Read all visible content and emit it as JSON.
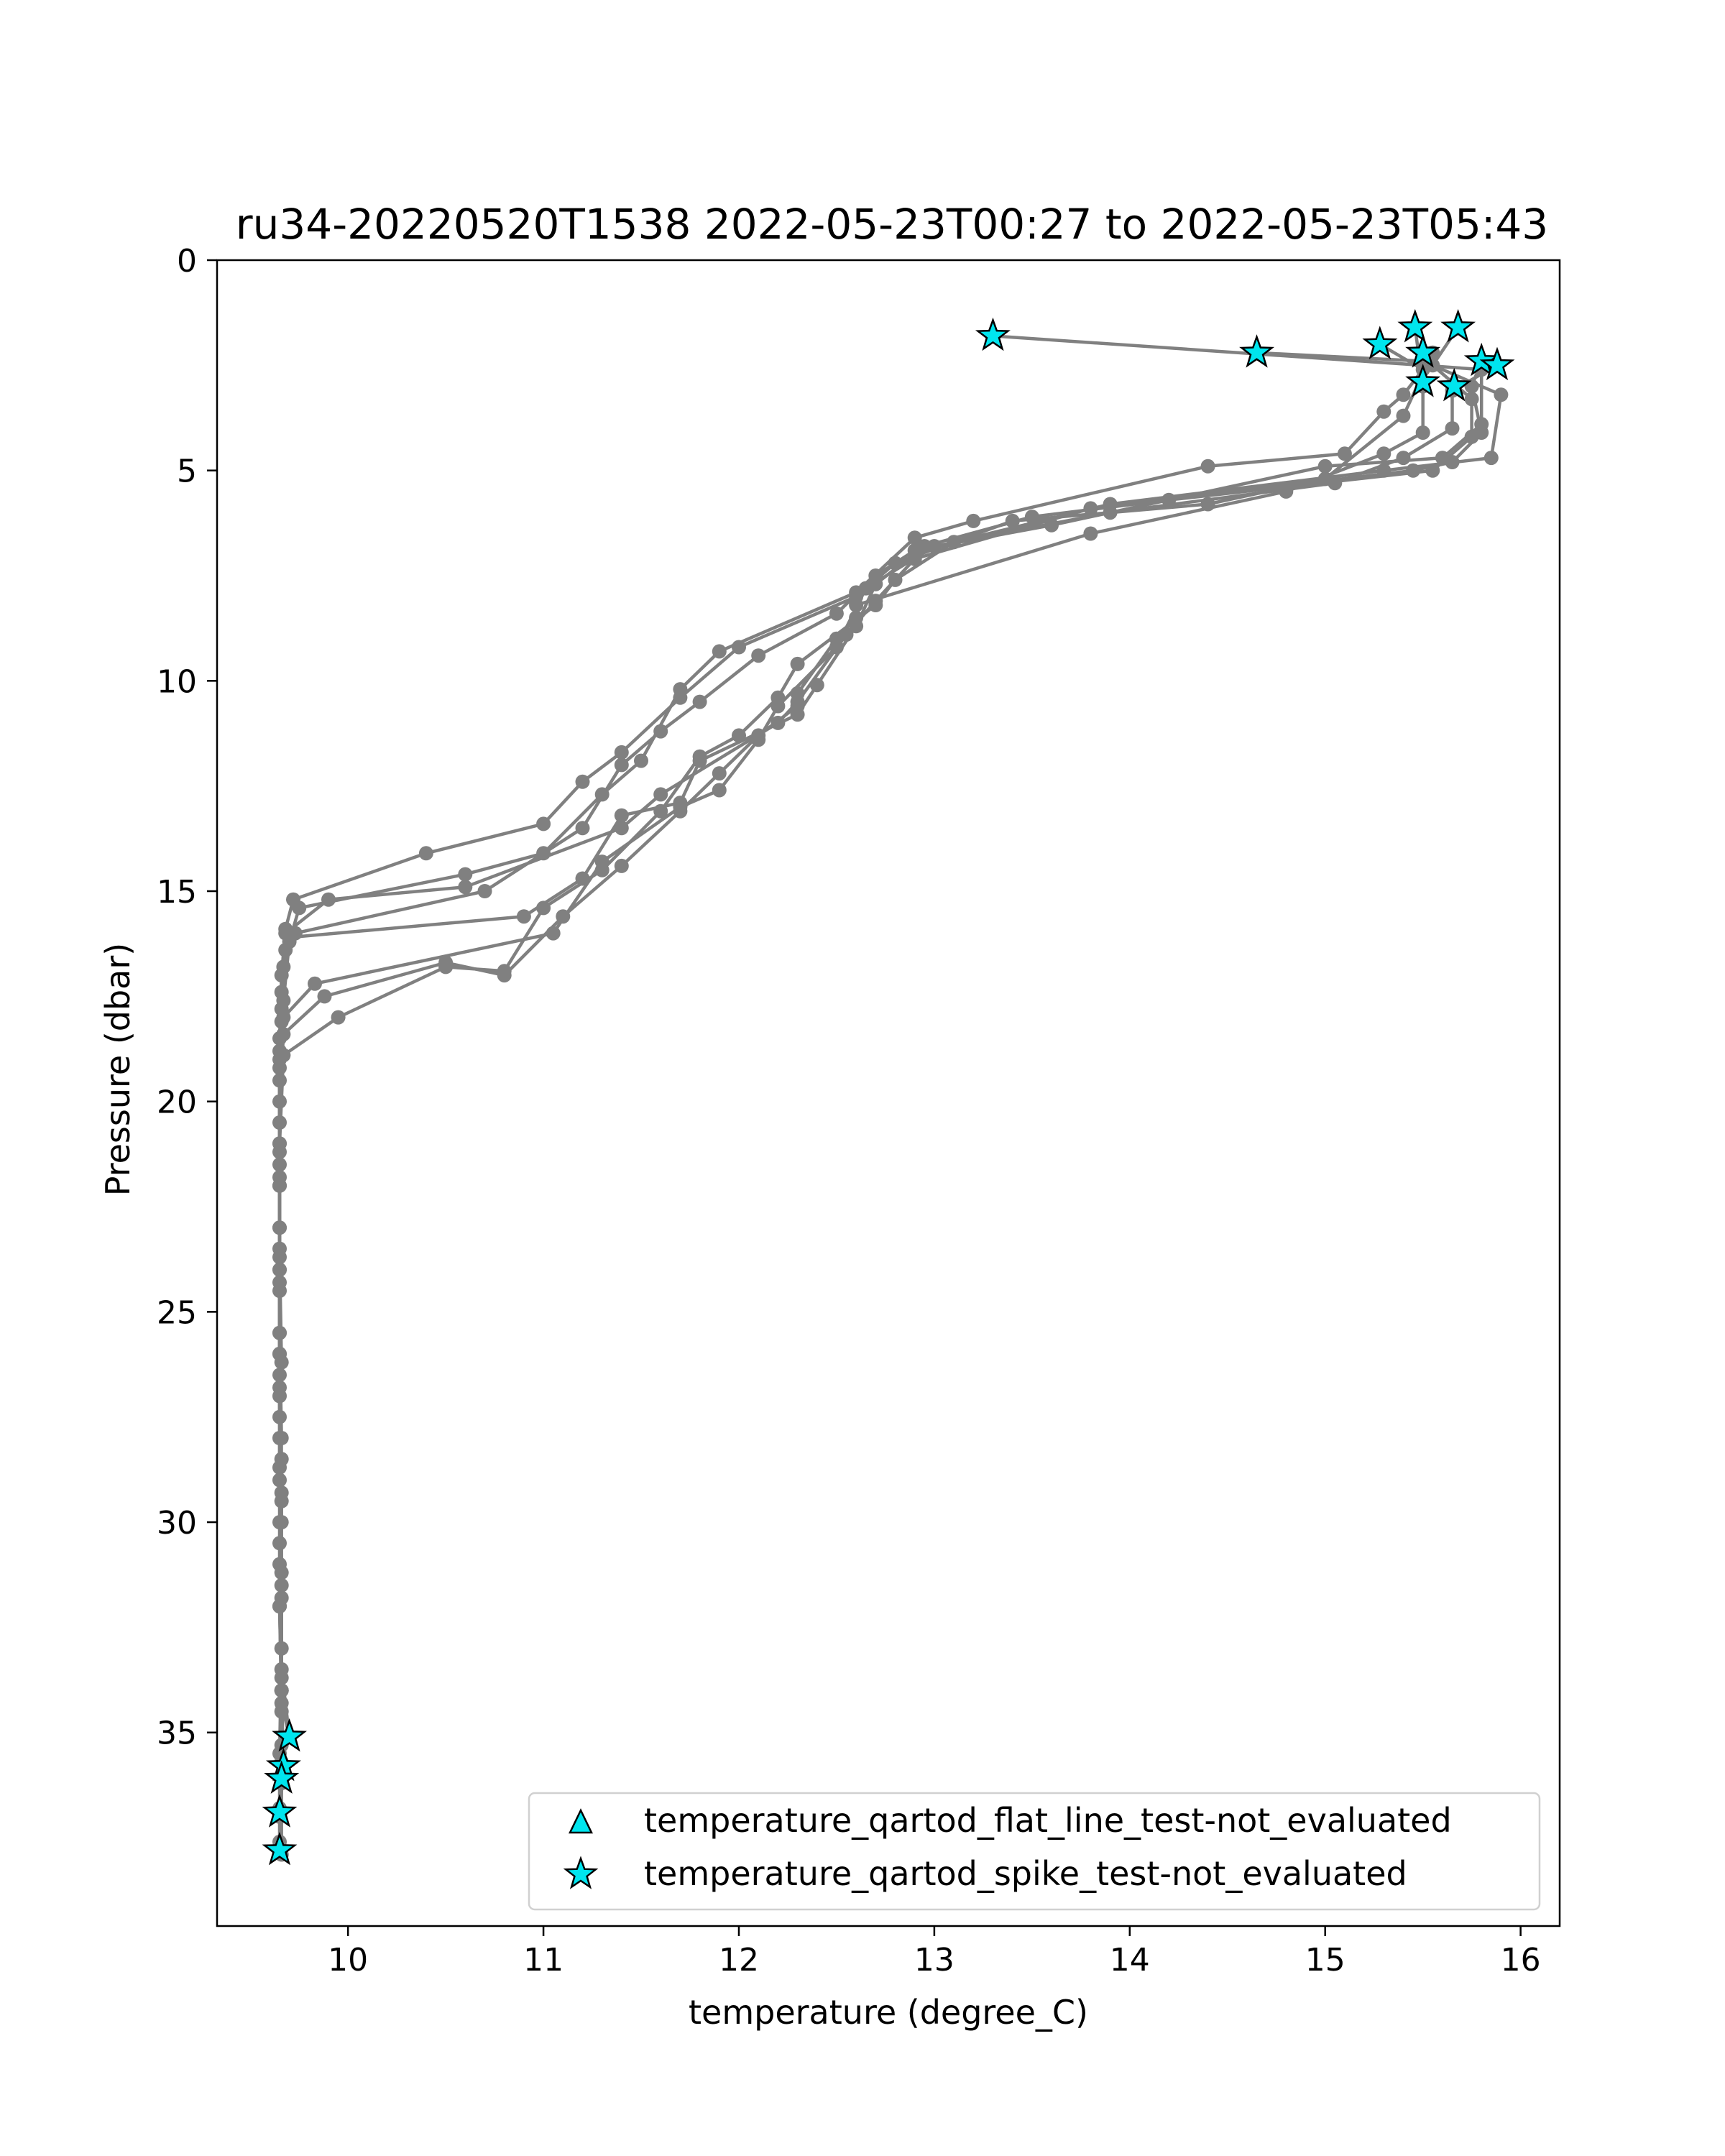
{
  "chart_data": {
    "type": "line",
    "title": "ru34-20220520T1538 2022-05-23T00:27 to 2022-05-23T05:43",
    "xlabel": "temperature (degree_C)",
    "ylabel": "Pressure (dbar)",
    "xlim": [
      9.33,
      16.2
    ],
    "ylim": [
      39.6,
      0
    ],
    "y_inverted": true,
    "x_ticks": [
      "10",
      "11",
      "12",
      "13",
      "14",
      "15",
      "16"
    ],
    "y_ticks": [
      "0",
      "5",
      "10",
      "15",
      "20",
      "25",
      "30",
      "35"
    ],
    "grid": false,
    "legend": {
      "position": "lower-right",
      "entries": [
        {
          "label": "temperature_qartod_flat_line_test-not_evaluated",
          "marker": "triangle",
          "color": "#00e5ee"
        },
        {
          "label": "temperature_qartod_spike_test-not_evaluated",
          "marker": "star",
          "color": "#00e5ee"
        }
      ]
    },
    "profile_color": "#808080",
    "flag_color": "#00e5ee",
    "series": [
      {
        "values": [
          [
            15.46,
            1.6
          ],
          [
            15.5,
            3.0
          ],
          [
            15.5,
            4.1
          ],
          [
            15.3,
            4.6
          ],
          [
            14.8,
            5.5
          ],
          [
            13.8,
            6.5
          ],
          [
            12.6,
            8.2
          ],
          [
            12.6,
            8.5
          ],
          [
            12.5,
            9.0
          ],
          [
            12.3,
            10.3
          ],
          [
            12.3,
            10.6
          ],
          [
            12.1,
            11.3
          ],
          [
            11.9,
            12.2
          ],
          [
            11.7,
            13.1
          ],
          [
            11.4,
            14.4
          ],
          [
            11.1,
            15.6
          ],
          [
            10.8,
            17.0
          ],
          [
            10.5,
            16.7
          ],
          [
            9.88,
            17.5
          ],
          [
            9.67,
            18.4
          ],
          [
            9.65,
            20.0
          ],
          [
            9.65,
            22.0
          ],
          [
            9.65,
            24.0
          ],
          [
            9.65,
            26.0
          ],
          [
            9.65,
            28.0
          ],
          [
            9.65,
            30.0
          ],
          [
            9.65,
            32.0
          ],
          [
            9.66,
            34.0
          ],
          [
            9.66,
            35.3
          ],
          [
            9.65,
            36.8
          ]
        ]
      },
      {
        "values": [
          [
            15.55,
            2.2
          ],
          [
            15.4,
            3.7
          ],
          [
            15.0,
            5.2
          ],
          [
            14.4,
            5.8
          ],
          [
            13.4,
            6.2
          ],
          [
            12.8,
            7.2
          ],
          [
            12.6,
            8.0
          ],
          [
            12.0,
            9.2
          ],
          [
            11.7,
            10.4
          ],
          [
            11.4,
            11.7
          ],
          [
            11.2,
            12.4
          ],
          [
            11.0,
            13.4
          ],
          [
            10.4,
            14.1
          ],
          [
            9.72,
            15.2
          ],
          [
            9.68,
            15.9
          ],
          [
            9.66,
            17.0
          ],
          [
            9.65,
            18.5
          ],
          [
            9.65,
            21.0
          ],
          [
            9.65,
            23.5
          ],
          [
            9.65,
            26.0
          ],
          [
            9.66,
            28.5
          ],
          [
            9.65,
            31.0
          ],
          [
            9.66,
            33.5
          ],
          [
            9.7,
            35.1
          ]
        ]
      },
      {
        "values": [
          [
            14.65,
            2.2
          ],
          [
            15.5,
            2.4
          ],
          [
            15.9,
            3.2
          ],
          [
            15.85,
            4.7
          ],
          [
            15.3,
            5.0
          ],
          [
            13.9,
            5.8
          ],
          [
            13.1,
            6.7
          ],
          [
            12.8,
            7.6
          ],
          [
            12.7,
            8.2
          ],
          [
            12.3,
            9.6
          ],
          [
            12.2,
            10.4
          ],
          [
            12.0,
            11.3
          ],
          [
            11.8,
            11.8
          ],
          [
            11.6,
            13.1
          ],
          [
            11.3,
            14.5
          ],
          [
            11.0,
            15.4
          ],
          [
            10.8,
            16.9
          ],
          [
            10.5,
            16.8
          ],
          [
            9.95,
            18.0
          ],
          [
            9.67,
            18.9
          ],
          [
            9.65,
            21.0
          ],
          [
            9.65,
            23.0
          ],
          [
            9.65,
            25.5
          ],
          [
            9.65,
            27.5
          ],
          [
            9.66,
            30.0
          ],
          [
            9.65,
            32.0
          ],
          [
            9.66,
            34.0
          ],
          [
            9.67,
            35.9
          ],
          [
            9.66,
            36.2
          ]
        ]
      },
      {
        "values": [
          [
            15.28,
            2.0
          ],
          [
            15.5,
            2.6
          ],
          [
            15.4,
            3.2
          ],
          [
            15.3,
            3.6
          ],
          [
            15.1,
            4.6
          ],
          [
            14.4,
            4.9
          ],
          [
            13.2,
            6.2
          ],
          [
            12.9,
            6.6
          ],
          [
            12.6,
            7.9
          ],
          [
            11.9,
            9.3
          ],
          [
            11.7,
            10.2
          ],
          [
            11.5,
            11.9
          ],
          [
            11.3,
            12.7
          ],
          [
            11.0,
            14.1
          ],
          [
            10.6,
            14.6
          ],
          [
            9.75,
            15.4
          ],
          [
            9.7,
            16.2
          ],
          [
            9.67,
            17.6
          ],
          [
            9.65,
            19.0
          ],
          [
            9.65,
            21.5
          ],
          [
            9.65,
            24.0
          ],
          [
            9.65,
            26.5
          ],
          [
            9.65,
            29.0
          ],
          [
            9.66,
            31.5
          ],
          [
            9.66,
            34.0
          ],
          [
            9.67,
            35.8
          ],
          [
            9.65,
            37.0
          ]
        ]
      },
      {
        "values": [
          [
            13.3,
            1.8
          ],
          [
            15.5,
            2.5
          ],
          [
            15.8,
            2.6
          ],
          [
            15.8,
            3.9
          ],
          [
            15.6,
            4.7
          ],
          [
            15.0,
            4.9
          ],
          [
            13.6,
            6.3
          ],
          [
            12.9,
            6.9
          ],
          [
            12.7,
            7.5
          ],
          [
            12.5,
            8.4
          ],
          [
            12.1,
            9.4
          ],
          [
            11.8,
            10.5
          ],
          [
            11.6,
            11.2
          ],
          [
            11.4,
            12.0
          ],
          [
            11.2,
            13.5
          ],
          [
            10.7,
            15.0
          ],
          [
            9.73,
            16.0
          ],
          [
            9.68,
            16.4
          ],
          [
            9.66,
            17.8
          ],
          [
            9.65,
            19.5
          ],
          [
            9.65,
            22.0
          ],
          [
            9.65,
            24.5
          ],
          [
            9.65,
            27.0
          ],
          [
            9.66,
            29.5
          ],
          [
            9.65,
            32.0
          ],
          [
            9.66,
            34.5
          ],
          [
            9.66,
            36.1
          ],
          [
            9.65,
            37.8
          ]
        ]
      },
      {
        "values": [
          [
            15.68,
            1.6
          ],
          [
            15.55,
            2.5
          ],
          [
            15.75,
            3.3
          ],
          [
            15.75,
            4.2
          ],
          [
            15.55,
            5.0
          ],
          [
            14.2,
            5.7
          ],
          [
            13.5,
            6.1
          ],
          [
            12.95,
            6.8
          ],
          [
            12.7,
            7.7
          ],
          [
            12.6,
            8.7
          ],
          [
            12.4,
            10.1
          ],
          [
            12.3,
            10.8
          ],
          [
            11.8,
            11.9
          ],
          [
            11.7,
            12.9
          ],
          [
            11.4,
            13.2
          ],
          [
            11.2,
            14.7
          ],
          [
            10.9,
            15.6
          ],
          [
            9.7,
            16.1
          ],
          [
            9.67,
            16.8
          ],
          [
            9.66,
            18.1
          ],
          [
            9.65,
            20.5
          ],
          [
            9.65,
            23.0
          ],
          [
            9.65,
            25.5
          ],
          [
            9.66,
            28.0
          ],
          [
            9.65,
            30.5
          ],
          [
            9.66,
            33.0
          ],
          [
            9.65,
            35.5
          ],
          [
            9.65,
            37.6
          ]
        ]
      },
      {
        "values": [
          [
            15.8,
            2.4
          ],
          [
            15.75,
            3.0
          ],
          [
            15.8,
            4.1
          ],
          [
            15.65,
            4.8
          ],
          [
            15.45,
            5.0
          ],
          [
            13.8,
            5.9
          ],
          [
            12.9,
            7.1
          ],
          [
            12.7,
            8.1
          ],
          [
            12.55,
            8.9
          ],
          [
            12.3,
            10.5
          ],
          [
            12.2,
            11.0
          ],
          [
            11.6,
            12.7
          ],
          [
            11.4,
            13.5
          ],
          [
            10.6,
            14.9
          ],
          [
            9.9,
            15.2
          ],
          [
            9.68,
            16.0
          ],
          [
            9.66,
            17.4
          ],
          [
            9.65,
            18.8
          ],
          [
            9.65,
            21.2
          ],
          [
            9.65,
            23.7
          ],
          [
            9.66,
            26.2
          ],
          [
            9.65,
            28.7
          ],
          [
            9.66,
            31.2
          ],
          [
            9.66,
            33.7
          ],
          [
            9.66,
            35.7
          ],
          [
            9.66,
            37.9
          ]
        ]
      },
      {
        "values": [
          [
            15.88,
            2.5
          ],
          [
            15.65,
            3.1
          ],
          [
            15.65,
            4.0
          ],
          [
            15.4,
            4.7
          ],
          [
            15.05,
            5.3
          ],
          [
            13.9,
            6.0
          ],
          [
            13.0,
            6.8
          ],
          [
            12.65,
            7.8
          ],
          [
            12.5,
            9.2
          ],
          [
            12.2,
            10.6
          ],
          [
            12.1,
            11.4
          ],
          [
            11.9,
            12.6
          ],
          [
            11.7,
            13.0
          ],
          [
            11.3,
            14.3
          ],
          [
            11.05,
            16.0
          ],
          [
            9.83,
            17.2
          ],
          [
            9.67,
            18.0
          ],
          [
            9.65,
            19.2
          ],
          [
            9.65,
            21.8
          ],
          [
            9.65,
            24.3
          ],
          [
            9.65,
            26.8
          ],
          [
            9.66,
            29.3
          ],
          [
            9.66,
            31.8
          ],
          [
            9.66,
            34.3
          ],
          [
            9.7,
            35.1
          ]
        ]
      }
    ],
    "flagged_points": [
      {
        "series": "temperature_qartod_spike_test-not_evaluated",
        "values": [
          [
            13.3,
            1.8
          ],
          [
            14.65,
            2.2
          ],
          [
            15.28,
            2.0
          ],
          [
            15.46,
            1.6
          ],
          [
            15.68,
            1.6
          ],
          [
            15.5,
            2.2
          ],
          [
            15.8,
            2.4
          ],
          [
            15.88,
            2.5
          ],
          [
            15.5,
            2.9
          ],
          [
            15.66,
            3.0
          ],
          [
            9.7,
            35.1
          ],
          [
            9.67,
            35.8
          ],
          [
            9.66,
            36.1
          ],
          [
            9.65,
            36.9
          ],
          [
            9.65,
            37.8
          ]
        ]
      }
    ]
  }
}
